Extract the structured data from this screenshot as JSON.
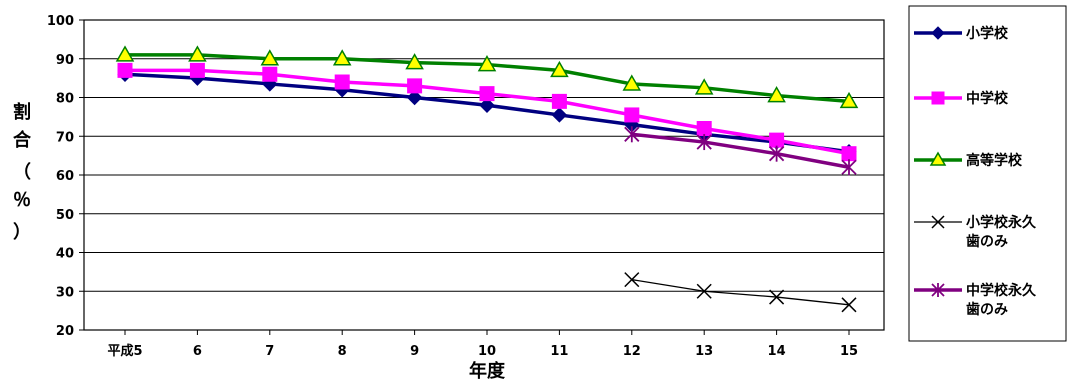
{
  "chart_data": {
    "type": "line",
    "categories": [
      "平成5",
      "6",
      "7",
      "8",
      "9",
      "10",
      "11",
      "12",
      "13",
      "14",
      "15"
    ],
    "ylim": [
      20,
      100
    ],
    "yticks": [
      20,
      30,
      40,
      50,
      60,
      70,
      80,
      90,
      100
    ],
    "ylabel": "割合（％）",
    "xlabel": "年度",
    "grid": true,
    "legend_position": "right",
    "series": [
      {
        "name": "小学校",
        "color": "#000080",
        "marker": "diamond",
        "values": [
          86,
          85,
          83.5,
          82,
          80,
          78,
          75.5,
          73,
          70.5,
          68.5,
          66
        ]
      },
      {
        "name": "中学校",
        "color": "#ff00ff",
        "marker": "square",
        "values": [
          87,
          87,
          86,
          84,
          83,
          81,
          79,
          75.5,
          72,
          69,
          65.5
        ]
      },
      {
        "name": "高等学校",
        "color": "#008000",
        "marker": "triangle",
        "values": [
          91,
          91,
          90,
          90,
          89,
          88.5,
          87,
          83.5,
          82.5,
          80.5,
          79
        ]
      },
      {
        "name": "小学校永久歯のみ",
        "color": "#000000",
        "marker": "x",
        "values": [
          null,
          null,
          null,
          null,
          null,
          null,
          null,
          33,
          30,
          28.5,
          26.5
        ]
      },
      {
        "name": "中学校永久歯のみ",
        "color": "#800080",
        "marker": "star",
        "values": [
          null,
          null,
          null,
          null,
          null,
          null,
          null,
          70.5,
          68.5,
          65.5,
          62
        ]
      }
    ]
  },
  "legend_labels": [
    [
      "小学校"
    ],
    [
      "中学校"
    ],
    [
      "高等学校"
    ],
    [
      "小学校永久",
      "歯のみ"
    ],
    [
      "中学校永久",
      "歯のみ"
    ]
  ]
}
